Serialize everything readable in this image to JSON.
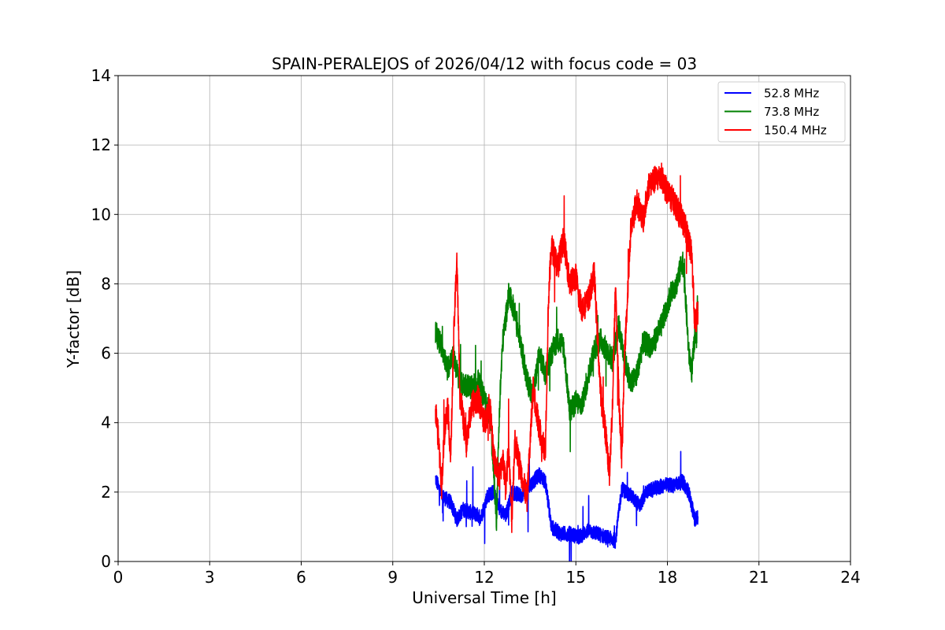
{
  "chart_data": {
    "type": "line",
    "title": "SPAIN-PERALEJOS of 2026/04/12 with focus code = 03",
    "xlabel": "Universal Time [h]",
    "ylabel": "Y-factor [dB]",
    "xlim": [
      0,
      24
    ],
    "ylim": [
      0,
      14
    ],
    "xticks": [
      0,
      3,
      6,
      9,
      12,
      15,
      18,
      21,
      24
    ],
    "yticks": [
      0,
      2,
      4,
      6,
      8,
      10,
      12,
      14
    ],
    "grid": true,
    "legend_position": "top-right",
    "series": [
      {
        "name": "52.8 MHz",
        "legend_label": " 52.8 MHz",
        "color": "#0000ff",
        "noise": 0.22,
        "points": [
          [
            10.4,
            2.4
          ],
          [
            10.6,
            1.9
          ],
          [
            10.9,
            1.7
          ],
          [
            11.1,
            1.2
          ],
          [
            11.3,
            1.5
          ],
          [
            11.6,
            1.4
          ],
          [
            11.9,
            1.3
          ],
          [
            12.1,
            1.9
          ],
          [
            12.3,
            2.0
          ],
          [
            12.5,
            1.5
          ],
          [
            12.7,
            1.3
          ],
          [
            12.9,
            2.0
          ],
          [
            13.2,
            1.9
          ],
          [
            13.5,
            2.2
          ],
          [
            13.8,
            2.5
          ],
          [
            14.0,
            2.3
          ],
          [
            14.2,
            1.0
          ],
          [
            14.5,
            0.8
          ],
          [
            14.8,
            0.8
          ],
          [
            15.1,
            0.7
          ],
          [
            15.4,
            0.9
          ],
          [
            15.7,
            0.8
          ],
          [
            16.0,
            0.7
          ],
          [
            16.3,
            0.6
          ],
          [
            16.5,
            2.1
          ],
          [
            16.8,
            1.9
          ],
          [
            17.1,
            1.6
          ],
          [
            17.3,
            2.0
          ],
          [
            17.6,
            2.1
          ],
          [
            17.9,
            2.2
          ],
          [
            18.2,
            2.2
          ],
          [
            18.5,
            2.3
          ],
          [
            18.7,
            2.0
          ],
          [
            18.9,
            1.2
          ],
          [
            19.0,
            1.3
          ]
        ]
      },
      {
        "name": "73.8 MHz",
        "legend_label": " 73.8 MHz",
        "color": "#008000",
        "noise": 0.35,
        "points": [
          [
            10.4,
            6.6
          ],
          [
            10.6,
            6.2
          ],
          [
            10.8,
            5.6
          ],
          [
            11.0,
            5.9
          ],
          [
            11.2,
            5.1
          ],
          [
            11.4,
            5.1
          ],
          [
            11.6,
            5.0
          ],
          [
            11.8,
            5.2
          ],
          [
            12.0,
            4.7
          ],
          [
            12.2,
            4.1
          ],
          [
            12.4,
            1.2
          ],
          [
            12.5,
            4.5
          ],
          [
            12.6,
            6.3
          ],
          [
            12.8,
            7.7
          ],
          [
            13.0,
            7.2
          ],
          [
            13.2,
            6.3
          ],
          [
            13.4,
            5.2
          ],
          [
            13.6,
            4.8
          ],
          [
            13.8,
            6.0
          ],
          [
            14.0,
            5.4
          ],
          [
            14.2,
            6.0
          ],
          [
            14.4,
            6.4
          ],
          [
            14.6,
            6.2
          ],
          [
            14.8,
            4.3
          ],
          [
            15.0,
            4.6
          ],
          [
            15.2,
            4.5
          ],
          [
            15.4,
            5.3
          ],
          [
            15.6,
            6.1
          ],
          [
            15.8,
            6.4
          ],
          [
            16.0,
            6.1
          ],
          [
            16.2,
            5.8
          ],
          [
            16.4,
            6.8
          ],
          [
            16.6,
            5.8
          ],
          [
            16.8,
            5.1
          ],
          [
            17.0,
            5.4
          ],
          [
            17.2,
            6.3
          ],
          [
            17.5,
            6.2
          ],
          [
            17.8,
            6.8
          ],
          [
            18.1,
            7.7
          ],
          [
            18.3,
            8.0
          ],
          [
            18.5,
            8.7
          ],
          [
            18.6,
            7.5
          ],
          [
            18.7,
            6.0
          ],
          [
            18.8,
            5.5
          ],
          [
            19.0,
            7.5
          ]
        ]
      },
      {
        "name": "150.4 MHz",
        "legend_label": "150.4 MHz",
        "color": "#ff0000",
        "noise": 0.4,
        "points": [
          [
            10.4,
            4.4
          ],
          [
            10.5,
            3.5
          ],
          [
            10.6,
            2.2
          ],
          [
            10.7,
            3.8
          ],
          [
            10.8,
            4.5
          ],
          [
            10.9,
            3.0
          ],
          [
            11.0,
            6.5
          ],
          [
            11.1,
            8.8
          ],
          [
            11.2,
            4.8
          ],
          [
            11.3,
            4.2
          ],
          [
            11.4,
            3.3
          ],
          [
            11.5,
            4.0
          ],
          [
            11.6,
            4.5
          ],
          [
            11.8,
            4.7
          ],
          [
            12.0,
            4.0
          ],
          [
            12.2,
            4.6
          ],
          [
            12.3,
            3.0
          ],
          [
            12.5,
            2.4
          ],
          [
            12.6,
            3.0
          ],
          [
            12.7,
            2.2
          ],
          [
            12.8,
            3.2
          ],
          [
            12.9,
            1.2
          ],
          [
            13.0,
            3.5
          ],
          [
            13.2,
            2.6
          ],
          [
            13.4,
            1.8
          ],
          [
            13.6,
            5.0
          ],
          [
            13.8,
            3.8
          ],
          [
            14.0,
            3.2
          ],
          [
            14.1,
            7.5
          ],
          [
            14.2,
            9.1
          ],
          [
            14.4,
            8.5
          ],
          [
            14.6,
            9.3
          ],
          [
            14.8,
            8.0
          ],
          [
            15.0,
            8.2
          ],
          [
            15.1,
            7.6
          ],
          [
            15.2,
            7.3
          ],
          [
            15.4,
            7.5
          ],
          [
            15.6,
            8.3
          ],
          [
            15.8,
            5.0
          ],
          [
            16.0,
            3.5
          ],
          [
            16.1,
            2.5
          ],
          [
            16.2,
            4.5
          ],
          [
            16.3,
            8.0
          ],
          [
            16.4,
            5.0
          ],
          [
            16.5,
            3.0
          ],
          [
            16.6,
            6.0
          ],
          [
            16.8,
            9.6
          ],
          [
            17.0,
            10.4
          ],
          [
            17.2,
            9.8
          ],
          [
            17.4,
            10.9
          ],
          [
            17.6,
            11.0
          ],
          [
            17.8,
            11.1
          ],
          [
            18.0,
            10.6
          ],
          [
            18.2,
            10.4
          ],
          [
            18.4,
            10.0
          ],
          [
            18.6,
            9.6
          ],
          [
            18.8,
            8.8
          ],
          [
            18.9,
            6.8
          ],
          [
            19.0,
            7.2
          ]
        ]
      }
    ]
  }
}
